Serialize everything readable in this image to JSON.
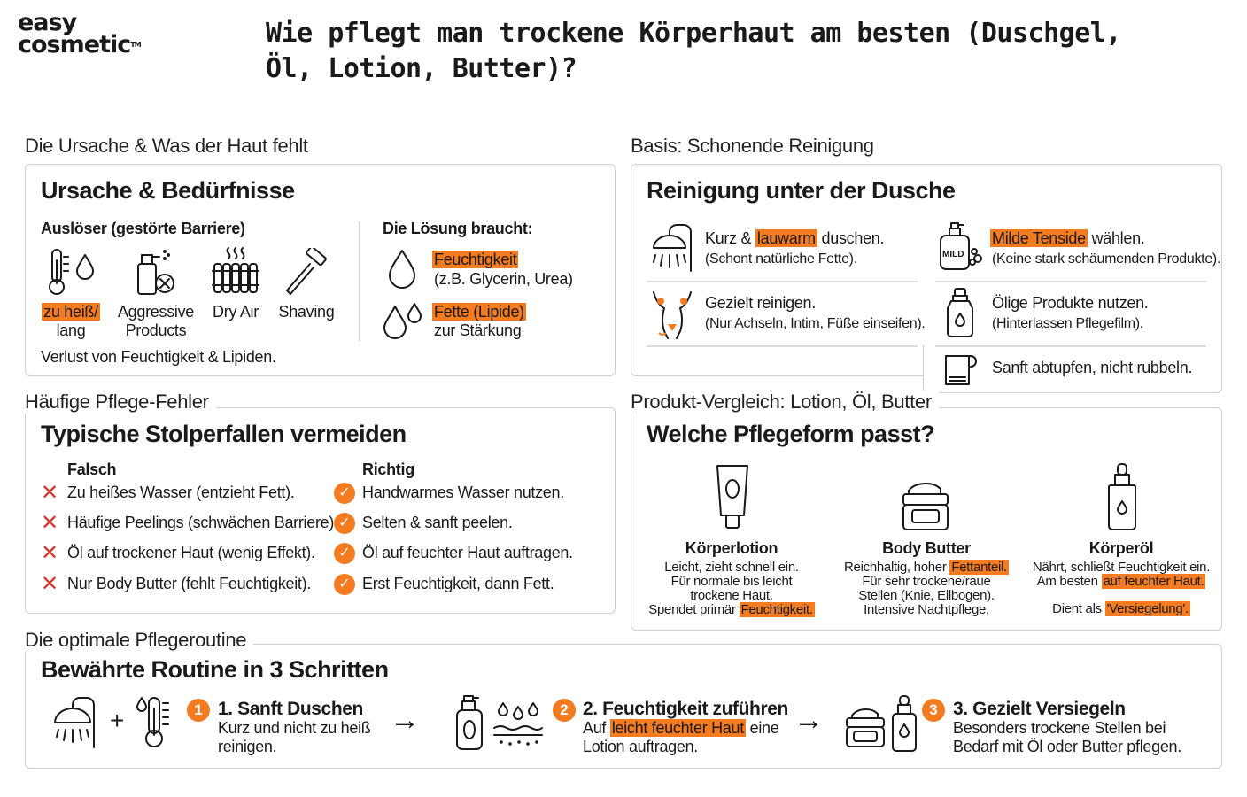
{
  "brand": {
    "line1": "easy",
    "line2": "cosmetic",
    "tm": "TM"
  },
  "title": "Wie pflegt man trockene Körperhaut am besten (Duschgel, Öl, Lotion, Butter)?",
  "colors": {
    "accent": "#f47b20",
    "cross": "#d9352a",
    "border": "#cfcfcf"
  },
  "cause": {
    "section_label": "Die Ursache & Was der Haut fehlt",
    "card_title": "Ursache & Bedürfnisse",
    "triggers_heading": "Auslöser (gestörte Barriere)",
    "triggers": [
      {
        "icon": "thermometer-drop-icon",
        "label_hl": "zu heiß/",
        "label_rest": "lang"
      },
      {
        "icon": "spray-bottle-icon",
        "label": "Aggressive Products"
      },
      {
        "icon": "radiator-icon",
        "label": "Dry Air"
      },
      {
        "icon": "razor-icon",
        "label": "Shaving"
      }
    ],
    "footer": "Verlust von Feuchtigkeit & Lipiden.",
    "solution_heading": "Die Lösung braucht:",
    "solutions": [
      {
        "icon": "drop-icon",
        "title": "Feuchtigkeit",
        "text": "(z.B. Glycerin, Urea)"
      },
      {
        "icon": "double-drop-icon",
        "title": "Fette (Lipide)",
        "text": "zur Stärkung"
      }
    ]
  },
  "cleansing": {
    "section_label": "Basis: Schonende Reinigung",
    "card_title": "Reinigung unter der Dusche",
    "items": [
      {
        "icon": "shower-icon",
        "pre": "Kurz & ",
        "hl": "lauwarm",
        "post": " duschen.",
        "sub": "(Schont natürliche Fette)."
      },
      {
        "icon": "body-zones-icon",
        "pre": "Gezielt reinigen.",
        "hl": "",
        "post": "",
        "sub": "(Nur Achseln, Intim, Füße einseifen)."
      },
      {
        "icon": "mild-soap-icon",
        "pre": "",
        "hl": "Milde Tenside",
        "post": " wählen.",
        "sub": "(Keine stark schäumenden Produkte)."
      },
      {
        "icon": "oil-bottle-icon",
        "pre": "Ölige Produkte nutzen.",
        "hl": "",
        "post": "",
        "sub": "(Hinterlassen Pflegefilm)."
      },
      {
        "icon": "towel-icon",
        "pre": "Sanft abtupfen, nicht rubbeln.",
        "hl": "",
        "post": "",
        "sub": ""
      }
    ]
  },
  "mistakes": {
    "section_label": "Häufige Pflege-Fehler",
    "card_title": "Typische Stolperfallen vermeiden",
    "wrong_heading": "Falsch",
    "right_heading": "Richtig",
    "wrong": [
      "Zu heißes Wasser (entzieht Fett).",
      "Häufige Peelings (schwächen Barriere).",
      "Öl auf trockener Haut (wenig Effekt).",
      "Nur Body Butter (fehlt Feuchtigkeit)."
    ],
    "right": [
      "Handwarmes Wasser nutzen.",
      "Selten & sanft peelen.",
      "Öl auf feuchter Haut auftragen.",
      "Erst Feuchtigkeit, dann Fett."
    ]
  },
  "compare": {
    "section_label": "Produkt-Vergleich: Lotion, Öl, Butter",
    "card_title": "Welche Pflegeform passt?",
    "products": [
      {
        "icon": "lotion-tube-icon",
        "name": "Körperlotion",
        "l1": "Leicht, zieht schnell ein.",
        "l2": "Für normale bis leicht",
        "l3": "trockene Haut.",
        "l4_pre": "Spendet primär ",
        "l4_hl": "Feuchtigkeit.",
        "l4_post": ""
      },
      {
        "icon": "butter-jar-icon",
        "name": "Body Butter",
        "l1_pre": "Reichhaltig, hoher ",
        "l1_hl": "Fettanteil.",
        "l2": "Für sehr trockene/raue",
        "l3": "Stellen (Knie, Ellbogen).",
        "l4": "Intensive Nachtpflege."
      },
      {
        "icon": "dropper-bottle-icon",
        "name": "Körperöl",
        "l1": "Nährt, schließt Feuchtigkeit ein.",
        "l2_pre": "Am besten ",
        "l2_hl": "auf feuchter Haut.",
        "l4_pre": "Dient als ",
        "l4_hl": "'Versiegelung'."
      }
    ]
  },
  "routine": {
    "section_label": "Die optimale Pflegeroutine",
    "card_title": "Bewährte Routine in 3 Schritten",
    "plus": "+",
    "arrow": "→",
    "steps": [
      {
        "num": "1",
        "title": "1. Sanft Duschen",
        "l1": "Kurz und nicht zu heiß",
        "l2": "reinigen."
      },
      {
        "num": "2",
        "title": "2. Feuchtigkeit zuführen",
        "l1_pre": "Auf ",
        "l1_hl": "leicht feuchter Haut",
        "l1_post": " eine",
        "l2": "Lotion auftragen."
      },
      {
        "num": "3",
        "title": "3. Gezielt Versiegeln",
        "l1": "Besonders trockene Stellen bei",
        "l2": "Bedarf mit Öl oder Butter pflegen."
      }
    ]
  }
}
